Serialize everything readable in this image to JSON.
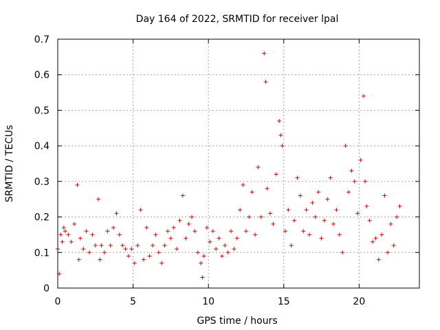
{
  "chart_data": {
    "type": "scatter",
    "title": "Day 164 of 2022, SRMTID for receiver lpal",
    "xlabel": "GPS time / hours",
    "ylabel": "SRMTID / TECUs",
    "xlim": [
      0,
      24
    ],
    "ylim": [
      0,
      0.7
    ],
    "x_ticks": [
      "0",
      "5",
      "10",
      "15",
      "20"
    ],
    "y_ticks": [
      "0",
      "0.1",
      "0.2",
      "0.3",
      "0.4",
      "0.5",
      "0.6",
      "0.7"
    ],
    "x_tick_values": [
      0,
      5,
      10,
      15,
      20
    ],
    "y_tick_values": [
      0,
      0.1,
      0.2,
      0.3,
      0.4,
      0.5,
      0.6,
      0.7
    ],
    "grid": true,
    "marker": "+",
    "color": "#e00000",
    "series": [
      {
        "name": "SRMTID",
        "x": [
          0.0,
          0.1,
          0.2,
          0.3,
          0.4,
          0.5,
          0.7,
          0.9,
          1.1,
          1.3,
          1.4,
          1.5,
          1.7,
          1.9,
          2.1,
          2.3,
          2.5,
          2.7,
          2.8,
          2.9,
          3.1,
          3.3,
          3.5,
          3.7,
          3.9,
          4.1,
          4.3,
          4.5,
          4.7,
          4.9,
          5.1,
          5.3,
          5.5,
          5.7,
          5.9,
          6.1,
          6.3,
          6.5,
          6.7,
          6.9,
          7.1,
          7.3,
          7.5,
          7.7,
          7.9,
          8.1,
          8.3,
          8.5,
          8.7,
          8.9,
          9.1,
          9.3,
          9.5,
          9.6,
          9.7,
          9.9,
          10.1,
          10.3,
          10.5,
          10.7,
          10.9,
          11.1,
          11.3,
          11.5,
          11.7,
          11.9,
          12.1,
          12.3,
          12.5,
          12.7,
          12.9,
          13.1,
          13.3,
          13.5,
          13.7,
          13.8,
          13.9,
          14.1,
          14.3,
          14.5,
          14.7,
          14.8,
          14.9,
          15.1,
          15.3,
          15.5,
          15.7,
          15.9,
          16.1,
          16.3,
          16.5,
          16.7,
          16.9,
          17.1,
          17.3,
          17.5,
          17.7,
          17.9,
          18.1,
          18.3,
          18.5,
          18.7,
          18.9,
          19.1,
          19.3,
          19.5,
          19.7,
          19.9,
          20.1,
          20.3,
          20.4,
          20.5,
          20.7,
          20.9,
          21.1,
          21.3,
          21.5,
          21.7,
          21.9,
          22.1,
          22.3,
          22.5,
          22.7
        ],
        "y": [
          0.11,
          0.04,
          0.15,
          0.13,
          0.17,
          0.16,
          0.15,
          0.13,
          0.18,
          0.29,
          0.08,
          0.14,
          0.11,
          0.16,
          0.1,
          0.15,
          0.12,
          0.25,
          0.08,
          0.12,
          0.1,
          0.16,
          0.12,
          0.17,
          0.21,
          0.15,
          0.12,
          0.11,
          0.09,
          0.11,
          0.07,
          0.12,
          0.22,
          0.08,
          0.17,
          0.09,
          0.12,
          0.15,
          0.1,
          0.07,
          0.12,
          0.16,
          0.14,
          0.17,
          0.11,
          0.19,
          0.26,
          0.14,
          0.18,
          0.2,
          0.16,
          0.1,
          0.07,
          0.03,
          0.09,
          0.17,
          0.13,
          0.16,
          0.11,
          0.14,
          0.09,
          0.12,
          0.1,
          0.16,
          0.11,
          0.14,
          0.22,
          0.29,
          0.16,
          0.2,
          0.27,
          0.15,
          0.34,
          0.2,
          0.66,
          0.58,
          0.28,
          0.21,
          0.18,
          0.32,
          0.47,
          0.43,
          0.4,
          0.16,
          0.22,
          0.12,
          0.19,
          0.31,
          0.26,
          0.16,
          0.22,
          0.15,
          0.24,
          0.2,
          0.27,
          0.14,
          0.19,
          0.25,
          0.31,
          0.18,
          0.22,
          0.15,
          0.1,
          0.4,
          0.27,
          0.33,
          0.3,
          0.21,
          0.36,
          0.54,
          0.3,
          0.23,
          0.19,
          0.13,
          0.14,
          0.08,
          0.15,
          0.26,
          0.1,
          0.18,
          0.12,
          0.2,
          0.23
        ]
      }
    ]
  }
}
